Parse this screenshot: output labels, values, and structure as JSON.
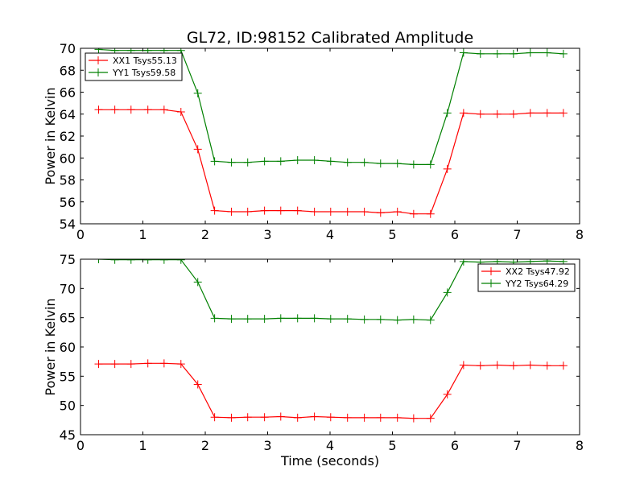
{
  "title": "GL72, ID:98152 Calibrated Amplitude",
  "chart_data": [
    {
      "type": "line",
      "xlabel": "",
      "ylabel": "Power in Kelvin",
      "xlim": [
        0,
        8
      ],
      "ylim": [
        54,
        70
      ],
      "xticks": [
        "0",
        "1",
        "2",
        "3",
        "4",
        "5",
        "6",
        "7",
        "8"
      ],
      "yticks": [
        "54",
        "56",
        "58",
        "60",
        "62",
        "64",
        "66",
        "68",
        "70"
      ],
      "grid": false,
      "legend_position": "top-left",
      "x": [
        0.29,
        0.55,
        0.81,
        1.08,
        1.34,
        1.61,
        1.88,
        2.15,
        2.42,
        2.68,
        2.95,
        3.21,
        3.48,
        3.75,
        4.01,
        4.28,
        4.55,
        4.81,
        5.08,
        5.34,
        5.61,
        5.88,
        6.14,
        6.41,
        6.68,
        6.94,
        7.21,
        7.48,
        7.74
      ],
      "series": [
        {
          "name": "XX1 Tsys55.13",
          "color": "#ff0000",
          "values": [
            64.4,
            64.4,
            64.4,
            64.4,
            64.4,
            64.2,
            60.8,
            55.2,
            55.1,
            55.1,
            55.2,
            55.2,
            55.2,
            55.1,
            55.1,
            55.1,
            55.1,
            55.0,
            55.1,
            54.9,
            54.9,
            59.0,
            64.1,
            64.0,
            64.0,
            64.0,
            64.1,
            64.1,
            64.1
          ]
        },
        {
          "name": "YY1 Tsys59.58",
          "color": "#008000",
          "values": [
            69.9,
            69.8,
            69.8,
            69.8,
            69.8,
            69.8,
            65.9,
            59.7,
            59.6,
            59.6,
            59.7,
            59.7,
            59.8,
            59.8,
            59.7,
            59.6,
            59.6,
            59.5,
            59.5,
            59.4,
            59.4,
            64.1,
            69.6,
            69.5,
            69.5,
            69.5,
            69.6,
            69.6,
            69.5
          ]
        }
      ]
    },
    {
      "type": "line",
      "xlabel": "Time (seconds)",
      "ylabel": "Power in Kelvin",
      "xlim": [
        0,
        8
      ],
      "ylim": [
        45,
        75
      ],
      "xticks": [
        "0",
        "1",
        "2",
        "3",
        "4",
        "5",
        "6",
        "7",
        "8"
      ],
      "yticks": [
        "45",
        "50",
        "55",
        "60",
        "65",
        "70",
        "75"
      ],
      "grid": false,
      "legend_position": "top-right",
      "x": [
        0.29,
        0.55,
        0.81,
        1.08,
        1.34,
        1.61,
        1.88,
        2.15,
        2.42,
        2.68,
        2.95,
        3.21,
        3.48,
        3.75,
        4.01,
        4.28,
        4.55,
        4.81,
        5.08,
        5.34,
        5.61,
        5.88,
        6.14,
        6.41,
        6.68,
        6.94,
        7.21,
        7.48,
        7.74
      ],
      "series": [
        {
          "name": "XX2 Tsys47.92",
          "color": "#ff0000",
          "values": [
            57.1,
            57.1,
            57.1,
            57.2,
            57.2,
            57.1,
            53.6,
            48.0,
            47.9,
            48.0,
            48.0,
            48.1,
            47.9,
            48.1,
            48.0,
            47.9,
            47.9,
            47.9,
            47.9,
            47.8,
            47.8,
            51.9,
            56.9,
            56.8,
            56.9,
            56.8,
            56.9,
            56.8,
            56.8
          ]
        },
        {
          "name": "YY2 Tsys64.29",
          "color": "#008000",
          "values": [
            75.0,
            74.9,
            74.9,
            74.9,
            74.9,
            74.9,
            71.1,
            64.9,
            64.8,
            64.8,
            64.8,
            64.9,
            64.9,
            64.9,
            64.8,
            64.8,
            64.7,
            64.7,
            64.6,
            64.7,
            64.6,
            69.3,
            74.6,
            74.5,
            74.6,
            74.5,
            74.6,
            74.7,
            74.6
          ]
        }
      ]
    }
  ]
}
